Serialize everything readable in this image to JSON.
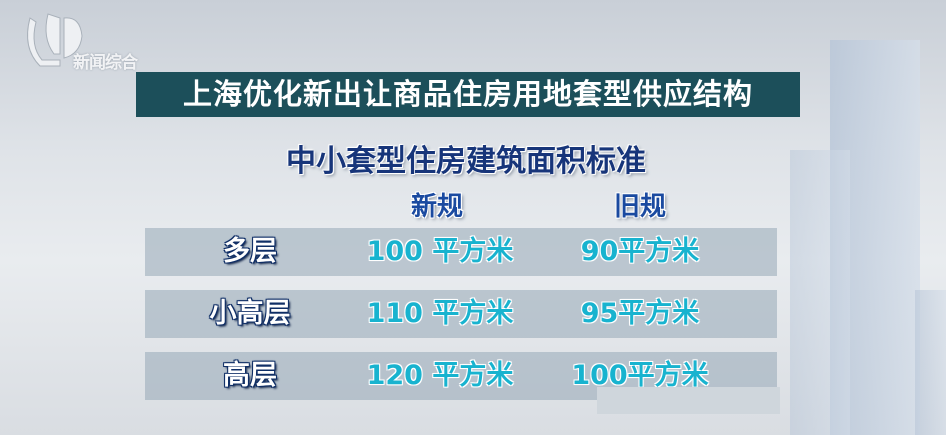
{
  "channel": {
    "logo_text": "新闻综合"
  },
  "title": "上海优化新出让商品住房用地套型供应结构",
  "subtitle": "中小套型住房建筑面积标准",
  "columns": [
    "新规",
    "旧规"
  ],
  "rows": [
    {
      "label": "多层",
      "new": "100 平方米",
      "old": "90平方米"
    },
    {
      "label": "小高层",
      "new": "110 平方米",
      "old": "95平方米"
    },
    {
      "label": "高层",
      "new": "120 平方米",
      "old": "100平方米"
    }
  ],
  "colors": {
    "title_bar": "#1c4f5a",
    "value_text": "#18b3cf",
    "label_outline": "#0f2e66",
    "subtitle": "#17357a"
  }
}
